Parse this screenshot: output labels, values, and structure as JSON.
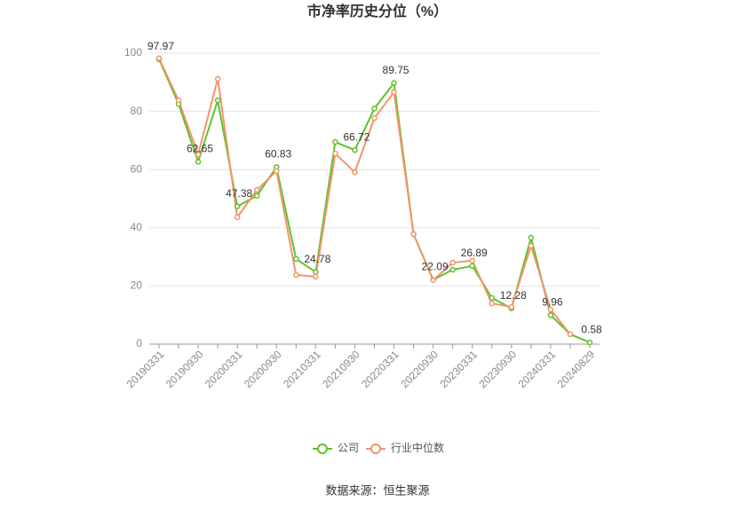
{
  "chart_data": {
    "type": "line",
    "title": "市净率历史分位（%）",
    "categories": [
      "20190331",
      null,
      "20190930",
      null,
      "20200331",
      null,
      "20200930",
      null,
      "20210331",
      null,
      "20210930",
      null,
      "20220331",
      null,
      "20220930",
      null,
      "20230331",
      null,
      "20230930",
      null,
      "20240331",
      null,
      "20240829"
    ],
    "series": [
      {
        "name": "公司",
        "color": "#5ec22f",
        "values": [
          97.97,
          82.6,
          62.65,
          83.8,
          47.38,
          51,
          60.83,
          29.3,
          24.78,
          69.5,
          66.72,
          81,
          89.75,
          37.8,
          22.09,
          25.6,
          26.89,
          15.9,
          12.28,
          36.6,
          9.96,
          3.4,
          0.58
        ]
      },
      {
        "name": "行业中位数",
        "color": "#f4946a",
        "values": [
          98.3,
          83.8,
          65.2,
          91.2,
          43.6,
          53,
          59.5,
          23.8,
          23.2,
          65.5,
          59.1,
          77.7,
          86.6,
          37.8,
          22,
          28,
          28.7,
          14,
          12.8,
          33.8,
          11.9,
          3.4,
          null
        ]
      }
    ],
    "ylim": [
      0,
      100
    ],
    "yticks": [
      0,
      20,
      40,
      60,
      80,
      100
    ],
    "grid": true,
    "legend": "bottom",
    "source": "数据来源：恒生聚源"
  }
}
